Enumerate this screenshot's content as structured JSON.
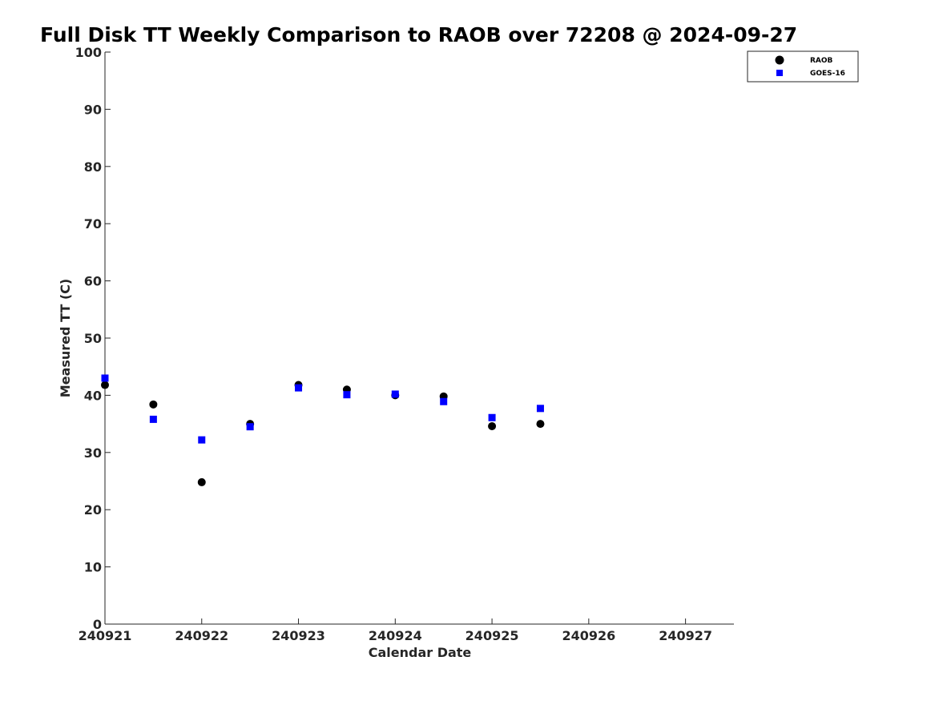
{
  "chart_data": {
    "type": "scatter",
    "title": "Full Disk TT Weekly Comparison to RAOB over 72208 @ 2024-09-27",
    "xlabel": "Calendar Date",
    "ylabel": "Measured TT (C)",
    "x_ticks": [
      "240921",
      "240922",
      "240923",
      "240924",
      "240925",
      "240926",
      "240927"
    ],
    "xlim": [
      "240921",
      "240927 12:00"
    ],
    "ylim": [
      0,
      100
    ],
    "y_ticks": [
      0,
      10,
      20,
      30,
      40,
      50,
      60,
      70,
      80,
      90,
      100
    ],
    "grid": false,
    "legend_position": "top-right",
    "series": [
      {
        "name": "RAOB",
        "marker": "circle",
        "color": "#000000",
        "points": [
          {
            "x": "240921 00:00",
            "y": 41.8
          },
          {
            "x": "240921 12:00",
            "y": 38.4
          },
          {
            "x": "240922 00:00",
            "y": 24.8
          },
          {
            "x": "240922 12:00",
            "y": 35.0
          },
          {
            "x": "240923 00:00",
            "y": 41.8
          },
          {
            "x": "240923 12:00",
            "y": 41.0
          },
          {
            "x": "240924 00:00",
            "y": 40.0
          },
          {
            "x": "240924 12:00",
            "y": 39.8
          },
          {
            "x": "240925 00:00",
            "y": 34.6
          },
          {
            "x": "240925 12:00",
            "y": 35.0
          }
        ]
      },
      {
        "name": "GOES-16",
        "marker": "square",
        "color": "#0000ff",
        "points": [
          {
            "x": "240921 00:00",
            "y": 43.0
          },
          {
            "x": "240921 12:00",
            "y": 35.8
          },
          {
            "x": "240922 00:00",
            "y": 32.2
          },
          {
            "x": "240922 12:00",
            "y": 34.5
          },
          {
            "x": "240923 00:00",
            "y": 41.3
          },
          {
            "x": "240923 12:00",
            "y": 40.1
          },
          {
            "x": "240924 00:00",
            "y": 40.2
          },
          {
            "x": "240924 12:00",
            "y": 38.9
          },
          {
            "x": "240925 00:00",
            "y": 36.1
          },
          {
            "x": "240925 12:00",
            "y": 37.7
          }
        ]
      }
    ]
  }
}
